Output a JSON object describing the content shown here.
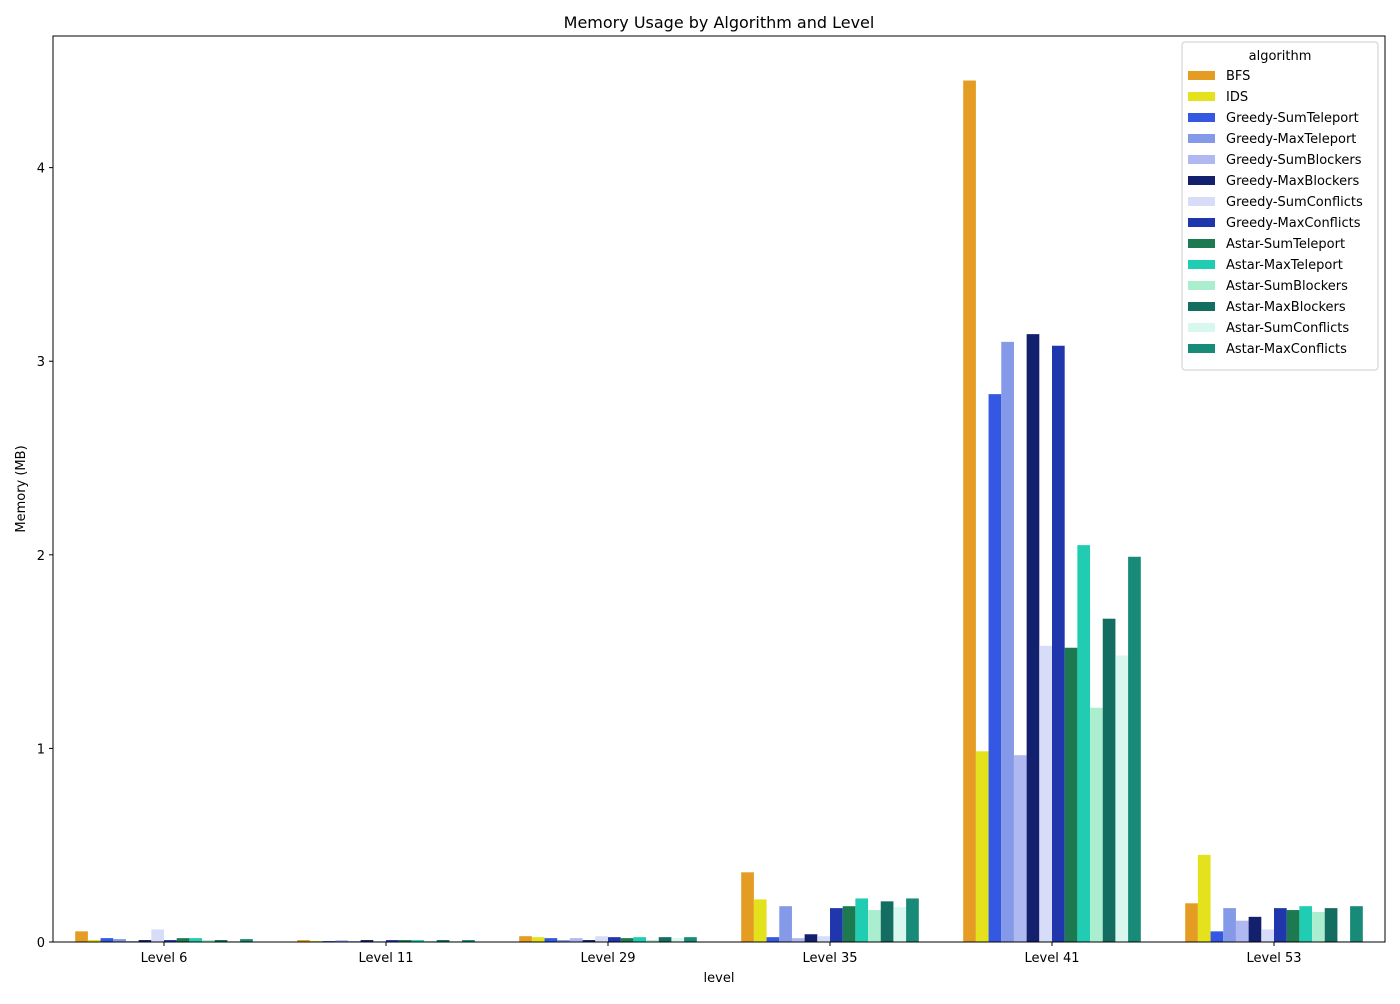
{
  "chart_data": {
    "type": "bar",
    "title": "Memory Usage by Algorithm and Level",
    "xlabel": "level",
    "ylabel": "Memory (MB)",
    "ylim": [
      0,
      4.68
    ],
    "yticks": [
      0,
      1,
      2,
      3,
      4
    ],
    "grid": false,
    "legend": {
      "title": "algorithm",
      "placement": "top-right"
    },
    "categories": [
      "Level 6",
      "Level 11",
      "Level 29",
      "Level 35",
      "Level 41",
      "Level 53"
    ],
    "series": [
      {
        "name": "BFS",
        "color": "#E49C22",
        "values": [
          0.055,
          0.01,
          0.03,
          0.36,
          4.45,
          0.2
        ]
      },
      {
        "name": "IDS",
        "color": "#E3E21C",
        "values": [
          0.01,
          0.005,
          0.025,
          0.22,
          0.985,
          0.45
        ]
      },
      {
        "name": "Greedy-SumTeleport",
        "color": "#3558E2",
        "values": [
          0.02,
          0.005,
          0.02,
          0.025,
          2.83,
          0.055
        ]
      },
      {
        "name": "Greedy-MaxTeleport",
        "color": "#8499E7",
        "values": [
          0.015,
          0.008,
          0.01,
          0.185,
          3.1,
          0.175
        ]
      },
      {
        "name": "Greedy-SumBlockers",
        "color": "#AFB8F1",
        "values": [
          0.005,
          0.005,
          0.02,
          0.02,
          0.965,
          0.11
        ]
      },
      {
        "name": "Greedy-MaxBlockers",
        "color": "#13206D",
        "values": [
          0.01,
          0.01,
          0.01,
          0.04,
          3.14,
          0.13
        ]
      },
      {
        "name": "Greedy-SumConflicts",
        "color": "#D7DDF8",
        "values": [
          0.065,
          0.005,
          0.03,
          0.03,
          1.53,
          0.065
        ]
      },
      {
        "name": "Greedy-MaxConflicts",
        "color": "#1F36AC",
        "values": [
          0.01,
          0.01,
          0.025,
          0.175,
          3.08,
          0.175
        ]
      },
      {
        "name": "Astar-SumTeleport",
        "color": "#1D7A50",
        "values": [
          0.02,
          0.01,
          0.02,
          0.185,
          1.52,
          0.165
        ]
      },
      {
        "name": "Astar-MaxTeleport",
        "color": "#21CDB2",
        "values": [
          0.02,
          0.01,
          0.025,
          0.225,
          2.05,
          0.185
        ]
      },
      {
        "name": "Astar-SumBlockers",
        "color": "#AAEDCF",
        "values": [
          0.01,
          0.005,
          0.01,
          0.165,
          1.21,
          0.155
        ]
      },
      {
        "name": "Astar-MaxBlockers",
        "color": "#136D60",
        "values": [
          0.01,
          0.01,
          0.025,
          0.21,
          1.67,
          0.175
        ]
      },
      {
        "name": "Astar-SumConflicts",
        "color": "#D7F7EF",
        "values": [
          0.005,
          0.005,
          0.02,
          0.18,
          1.48,
          0.005
        ]
      },
      {
        "name": "Astar-MaxConflicts",
        "color": "#178A78",
        "values": [
          0.015,
          0.01,
          0.025,
          0.225,
          1.99,
          0.185
        ]
      }
    ]
  }
}
